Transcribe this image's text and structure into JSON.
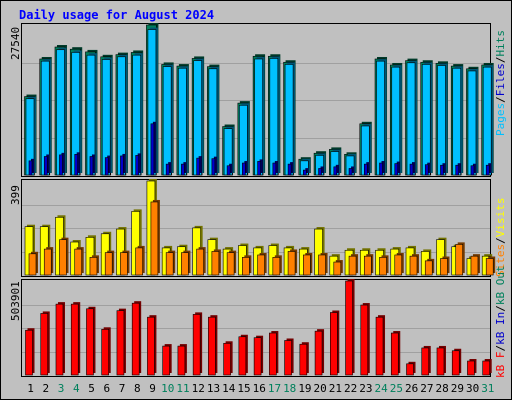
{
  "chart_data": [
    {
      "type": "bar",
      "title": "Daily usage for August 2024",
      "panel": "hits-files-pages",
      "ylabel_parts": [
        "Pages",
        "/",
        "Files",
        "/",
        "Hits"
      ],
      "ylim": [
        0,
        27540
      ],
      "ymax_label": "27540",
      "categories": [
        "1",
        "2",
        "3",
        "4",
        "5",
        "6",
        "7",
        "8",
        "9",
        "10",
        "11",
        "12",
        "13",
        "14",
        "15",
        "16",
        "17",
        "18",
        "19",
        "20",
        "21",
        "22",
        "23",
        "24",
        "25",
        "26",
        "27",
        "28",
        "29",
        "30",
        "31"
      ],
      "weekend_days": [
        "3",
        "4",
        "10",
        "11",
        "17",
        "18",
        "24",
        "25",
        "31"
      ],
      "grid": true,
      "series": [
        {
          "name": "Hits",
          "color": "#00805c",
          "values": [
            14400,
            21300,
            23500,
            23100,
            22600,
            21700,
            22100,
            22500,
            27540,
            20300,
            20000,
            21400,
            19900,
            8900,
            13200,
            21800,
            21800,
            20700,
            2900,
            4000,
            4700,
            3800,
            9400,
            21300,
            20200,
            21000,
            20700,
            20500,
            20000,
            19500,
            20200
          ]
        },
        {
          "name": "Files",
          "color": "#00c0ff",
          "values": [
            14000,
            20900,
            23000,
            22500,
            22000,
            21200,
            21700,
            22000,
            26700,
            19900,
            19600,
            21000,
            19500,
            8500,
            12800,
            21300,
            21400,
            20300,
            2600,
            3600,
            4300,
            3500,
            9000,
            20900,
            19800,
            20600,
            20300,
            20100,
            19600,
            19100,
            19800
          ]
        },
        {
          "name": "Pages",
          "color": "#0000cc",
          "values": [
            2600,
            3400,
            3700,
            3800,
            3400,
            3200,
            3500,
            3600,
            9400,
            2000,
            2000,
            3100,
            3000,
            1700,
            2200,
            2500,
            2200,
            2000,
            900,
            1200,
            1500,
            1200,
            2000,
            2200,
            2100,
            2000,
            1900,
            1800,
            1800,
            1700,
            1800
          ]
        }
      ]
    },
    {
      "type": "bar",
      "panel": "visits-sites",
      "ylabel_parts": [
        "Sites",
        "/",
        "Visits"
      ],
      "ylim": [
        0,
        399
      ],
      "ymax_label": "399",
      "grid": true,
      "series": [
        {
          "name": "Visits",
          "color": "#ffff00",
          "values": [
            205,
            205,
            245,
            140,
            160,
            175,
            195,
            270,
            399,
            115,
            120,
            200,
            150,
            110,
            125,
            115,
            125,
            115,
            110,
            195,
            80,
            105,
            105,
            105,
            110,
            115,
            100,
            150,
            120,
            70,
            80
          ]
        },
        {
          "name": "Sites",
          "color": "#ff8000",
          "values": [
            90,
            110,
            150,
            110,
            75,
            95,
            95,
            115,
            310,
            95,
            95,
            110,
            100,
            95,
            75,
            85,
            75,
            100,
            85,
            85,
            55,
            80,
            80,
            75,
            85,
            80,
            60,
            70,
            130,
            80,
            70
          ]
        }
      ]
    },
    {
      "type": "bar",
      "panel": "kbytes",
      "ylabel_parts": [
        "kB F",
        "/",
        "kB In",
        "/",
        "kB Out"
      ],
      "ylim": [
        0,
        503901
      ],
      "ymax_label": "503901",
      "grid": true,
      "series": [
        {
          "name": "kB F",
          "color": "#ff0000",
          "values": [
            240000,
            330000,
            380000,
            380000,
            355000,
            245000,
            345000,
            385000,
            310000,
            155000,
            155000,
            325000,
            310000,
            170000,
            205000,
            200000,
            225000,
            185000,
            165000,
            235000,
            335000,
            503901,
            375000,
            310000,
            225000,
            60000,
            145000,
            145000,
            130000,
            75000,
            75000
          ]
        }
      ]
    }
  ]
}
